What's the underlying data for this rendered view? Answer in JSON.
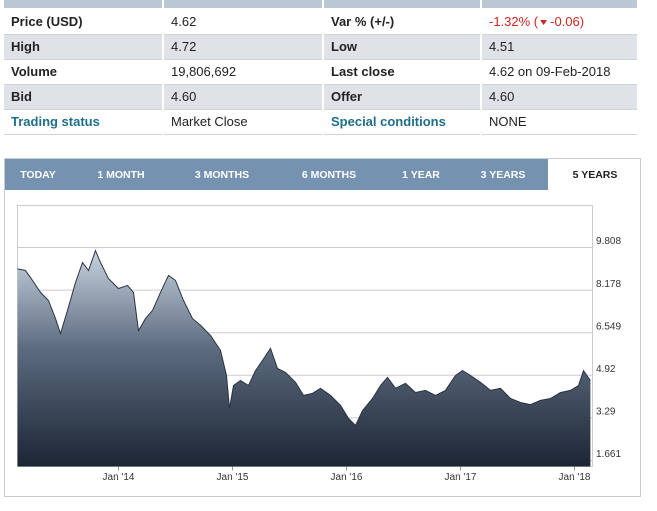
{
  "table": {
    "rows": [
      [
        "Price (USD)",
        "4.62",
        "Var % (+/-)",
        null
      ],
      [
        "High",
        "4.72",
        "Low",
        "4.51"
      ],
      [
        "Volume",
        "19,806,692",
        "Last close",
        "4.62 on 09-Feb-2018"
      ],
      [
        "Bid",
        "4.60",
        "Offer",
        "4.60"
      ],
      [
        "Trading status",
        "Market Close",
        "Special conditions",
        "NONE"
      ]
    ],
    "change_pct": "-1.32% (",
    "change_abs": "-0.06)"
  },
  "tabs": [
    "TODAY",
    "1 MONTH",
    "3 MONTHS",
    "6 MONTHS",
    "1 YEAR",
    "3 YEARS",
    "5 YEARS"
  ],
  "active_tab": 6,
  "chart_data": {
    "type": "area",
    "color": "#2a3442",
    "x": [
      2013.114,
      2013.184,
      2013.246,
      2013.316,
      2013.386,
      2013.447,
      2013.491,
      2013.553,
      2013.623,
      2013.684,
      2013.737,
      2013.798,
      2013.842,
      2013.912,
      2014.0,
      2014.079,
      2014.132,
      2014.175,
      2014.237,
      2014.298,
      2014.368,
      2014.439,
      2014.5,
      2014.57,
      2014.649,
      2014.719,
      2014.807,
      2014.895,
      2014.947,
      2014.974,
      2015.009,
      2015.07,
      2015.14,
      2015.202,
      2015.263,
      2015.333,
      2015.395,
      2015.465,
      2015.553,
      2015.623,
      2015.702,
      2015.772,
      2015.86,
      2015.947,
      2016.018,
      2016.079,
      2016.14,
      2016.228,
      2016.298,
      2016.36,
      2016.43,
      2016.518,
      2016.605,
      2016.693,
      2016.781,
      2016.868,
      2016.956,
      2017.018,
      2017.088,
      2017.175,
      2017.263,
      2017.351,
      2017.439,
      2017.526,
      2017.614,
      2017.702,
      2017.789,
      2017.877,
      2017.965,
      2018.035,
      2018.079,
      2018.14
    ],
    "values": [
      8.99,
      8.93,
      8.55,
      8.09,
      7.78,
      7.09,
      6.52,
      7.4,
      8.47,
      9.23,
      8.93,
      9.69,
      9.23,
      8.62,
      8.24,
      8.36,
      8.09,
      6.63,
      7.09,
      7.4,
      8.09,
      8.74,
      8.55,
      7.78,
      7.09,
      6.83,
      6.44,
      5.87,
      4.91,
      3.65,
      4.53,
      4.72,
      4.53,
      5.1,
      5.49,
      5.95,
      5.18,
      5.03,
      4.65,
      4.15,
      4.23,
      4.42,
      4.15,
      3.77,
      3.27,
      3.0,
      3.57,
      4.03,
      4.53,
      4.84,
      4.42,
      4.61,
      4.26,
      4.34,
      4.15,
      4.34,
      4.91,
      5.1,
      4.91,
      4.65,
      4.34,
      4.42,
      4.03,
      3.88,
      3.8,
      3.96,
      4.03,
      4.26,
      4.34,
      4.53,
      5.1,
      4.72
    ],
    "xlim": [
      2013.114,
      2018.158
    ],
    "ylim": [
      1.43,
      11.415
    ],
    "xticks": [
      {
        "value": 2014,
        "label": "Jan '14"
      },
      {
        "value": 2015,
        "label": "Jan '15"
      },
      {
        "value": 2016,
        "label": "Jan '16"
      },
      {
        "value": 2017,
        "label": "Jan '17"
      },
      {
        "value": 2018,
        "label": "Jan '18"
      }
    ],
    "yticks": [
      1.661,
      3.29,
      4.92,
      6.549,
      8.178,
      9.808
    ],
    "grid": true
  }
}
